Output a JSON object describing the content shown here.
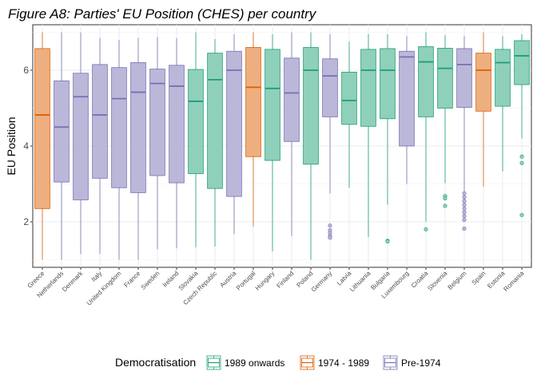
{
  "chart_data": {
    "type": "box",
    "title": "Figure A8: Parties' EU Position (CHES) per country",
    "ylabel": "EU Position",
    "xlabel": "",
    "ylim": [
      0.8,
      7.2
    ],
    "yticks": [
      2,
      4,
      6
    ],
    "grid": true,
    "legend_position": "bottom",
    "legend_title": "Democratisation",
    "groups": [
      {
        "name": "1989 onwards",
        "color": "#1b9e77",
        "fill": "#8fd0bb"
      },
      {
        "name": "1974 - 1989",
        "color": "#d95f02",
        "fill": "#eeaf80"
      },
      {
        "name": "Pre-1974",
        "color": "#7570b3",
        "fill": "#bab7d9"
      }
    ],
    "categories": [
      "Greece",
      "Netherlands",
      "Denmark",
      "Italy",
      "United Kingdom",
      "France",
      "Sweden",
      "Ireland",
      "Slovakia",
      "Czech Republic",
      "Austria",
      "Portugal",
      "Hungary",
      "Finland",
      "Poland",
      "Germany",
      "Latvia",
      "Lithuania",
      "Bulgaria",
      "Luxembourg",
      "Croatia",
      "Slovenia",
      "Belgium",
      "Spain",
      "Estonia",
      "Romania"
    ],
    "boxes": [
      {
        "country": "Greece",
        "group": "1974 - 1989",
        "min": 1.0,
        "q1": 2.35,
        "median": 4.82,
        "q3": 6.57,
        "max": 7.0,
        "outliers": []
      },
      {
        "country": "Netherlands",
        "group": "Pre-1974",
        "min": 1.0,
        "q1": 3.05,
        "median": 4.5,
        "q3": 5.72,
        "max": 7.0,
        "outliers": []
      },
      {
        "country": "Denmark",
        "group": "Pre-1974",
        "min": 1.15,
        "q1": 2.58,
        "median": 5.3,
        "q3": 5.92,
        "max": 7.0,
        "outliers": []
      },
      {
        "country": "Italy",
        "group": "Pre-1974",
        "min": 1.15,
        "q1": 3.15,
        "median": 4.82,
        "q3": 6.15,
        "max": 6.85,
        "outliers": []
      },
      {
        "country": "United Kingdom",
        "group": "Pre-1974",
        "min": 1.0,
        "q1": 2.9,
        "median": 5.25,
        "q3": 6.07,
        "max": 6.8,
        "outliers": []
      },
      {
        "country": "France",
        "group": "Pre-1974",
        "min": 1.0,
        "q1": 2.77,
        "median": 5.42,
        "q3": 6.2,
        "max": 6.85,
        "outliers": []
      },
      {
        "country": "Sweden",
        "group": "Pre-1974",
        "min": 1.28,
        "q1": 3.22,
        "median": 5.65,
        "q3": 6.03,
        "max": 6.88,
        "outliers": []
      },
      {
        "country": "Ireland",
        "group": "Pre-1974",
        "min": 1.3,
        "q1": 3.03,
        "median": 5.58,
        "q3": 6.13,
        "max": 6.85,
        "outliers": []
      },
      {
        "country": "Slovakia",
        "group": "1989 onwards",
        "min": 1.33,
        "q1": 3.27,
        "median": 5.18,
        "q3": 6.02,
        "max": 7.0,
        "outliers": []
      },
      {
        "country": "Czech Republic",
        "group": "1989 onwards",
        "min": 1.35,
        "q1": 2.88,
        "median": 5.75,
        "q3": 6.45,
        "max": 6.82,
        "outliers": []
      },
      {
        "country": "Austria",
        "group": "Pre-1974",
        "min": 1.68,
        "q1": 2.67,
        "median": 6.0,
        "q3": 6.5,
        "max": 6.95,
        "outliers": []
      },
      {
        "country": "Portugal",
        "group": "1974 - 1989",
        "min": 1.88,
        "q1": 3.72,
        "median": 5.55,
        "q3": 6.6,
        "max": 7.0,
        "outliers": []
      },
      {
        "country": "Hungary",
        "group": "1989 onwards",
        "min": 1.22,
        "q1": 3.62,
        "median": 5.52,
        "q3": 6.55,
        "max": 6.95,
        "outliers": []
      },
      {
        "country": "Finland",
        "group": "Pre-1974",
        "min": 1.62,
        "q1": 4.12,
        "median": 5.4,
        "q3": 6.32,
        "max": 7.0,
        "outliers": []
      },
      {
        "country": "Poland",
        "group": "1989 onwards",
        "min": 1.0,
        "q1": 3.52,
        "median": 6.0,
        "q3": 6.6,
        "max": 7.0,
        "outliers": []
      },
      {
        "country": "Germany",
        "group": "Pre-1974",
        "min": 2.75,
        "q1": 4.77,
        "median": 5.85,
        "q3": 6.3,
        "max": 6.95,
        "outliers": [
          1.9,
          1.78,
          1.7,
          1.62,
          1.58
        ]
      },
      {
        "country": "Latvia",
        "group": "1989 onwards",
        "min": 2.9,
        "q1": 4.57,
        "median": 5.2,
        "q3": 5.95,
        "max": 6.75,
        "outliers": []
      },
      {
        "country": "Lithuania",
        "group": "1989 onwards",
        "min": 1.6,
        "q1": 4.52,
        "median": 6.0,
        "q3": 6.55,
        "max": 6.95,
        "outliers": []
      },
      {
        "country": "Bulgaria",
        "group": "1989 onwards",
        "min": 2.45,
        "q1": 4.72,
        "median": 6.0,
        "q3": 6.57,
        "max": 6.95,
        "outliers": [
          1.5,
          1.48
        ]
      },
      {
        "country": "Luxembourg",
        "group": "Pre-1974",
        "min": 3.0,
        "q1": 4.0,
        "median": 6.35,
        "q3": 6.5,
        "max": 6.9,
        "outliers": []
      },
      {
        "country": "Croatia",
        "group": "1989 onwards",
        "min": 2.0,
        "q1": 4.77,
        "median": 6.22,
        "q3": 6.62,
        "max": 7.0,
        "outliers": [
          1.8
        ]
      },
      {
        "country": "Slovenia",
        "group": "1989 onwards",
        "min": 3.02,
        "q1": 5.0,
        "median": 6.05,
        "q3": 6.58,
        "max": 6.92,
        "outliers": [
          2.68,
          2.62,
          2.42
        ]
      },
      {
        "country": "Belgium",
        "group": "Pre-1974",
        "min": 2.8,
        "q1": 5.02,
        "median": 6.15,
        "q3": 6.57,
        "max": 6.9,
        "outliers": [
          2.75,
          2.65,
          2.55,
          2.45,
          2.35,
          2.25,
          2.15,
          2.05,
          1.82
        ]
      },
      {
        "country": "Spain",
        "group": "1974 - 1989",
        "min": 2.92,
        "q1": 4.92,
        "median": 6.0,
        "q3": 6.45,
        "max": 7.0,
        "outliers": []
      },
      {
        "country": "Estonia",
        "group": "1989 onwards",
        "min": 3.33,
        "q1": 5.05,
        "median": 6.2,
        "q3": 6.55,
        "max": 6.9,
        "outliers": []
      },
      {
        "country": "Romania",
        "group": "1989 onwards",
        "min": 4.2,
        "q1": 5.62,
        "median": 6.38,
        "q3": 6.78,
        "max": 6.95,
        "outliers": [
          3.72,
          3.55,
          2.18
        ]
      }
    ]
  }
}
